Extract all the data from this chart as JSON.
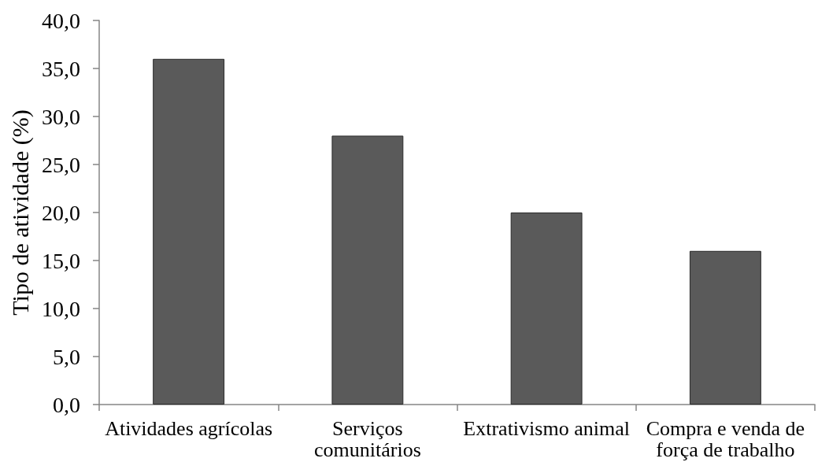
{
  "chart_data": {
    "type": "bar",
    "ylabel": "Tipo de atividade (%)",
    "categories": [
      "Atividades agrícolas",
      "Serviços comunitários",
      "Extrativismo animal",
      "Compra e venda de força de trabalho"
    ],
    "values": [
      36,
      28,
      20,
      16
    ],
    "color": "#5a5a5a",
    "ylim": [
      0,
      40
    ],
    "yticks": [
      {
        "value": 0,
        "label": "0,0"
      },
      {
        "value": 5,
        "label": "5,0"
      },
      {
        "value": 10,
        "label": "10,0"
      },
      {
        "value": 15,
        "label": "15,0"
      },
      {
        "value": 20,
        "label": "20,0"
      },
      {
        "value": 25,
        "label": "25,0"
      },
      {
        "value": 30,
        "label": "30,0"
      },
      {
        "value": 35,
        "label": "35,0"
      },
      {
        "value": 40,
        "label": "40,0"
      }
    ],
    "grid": false
  }
}
